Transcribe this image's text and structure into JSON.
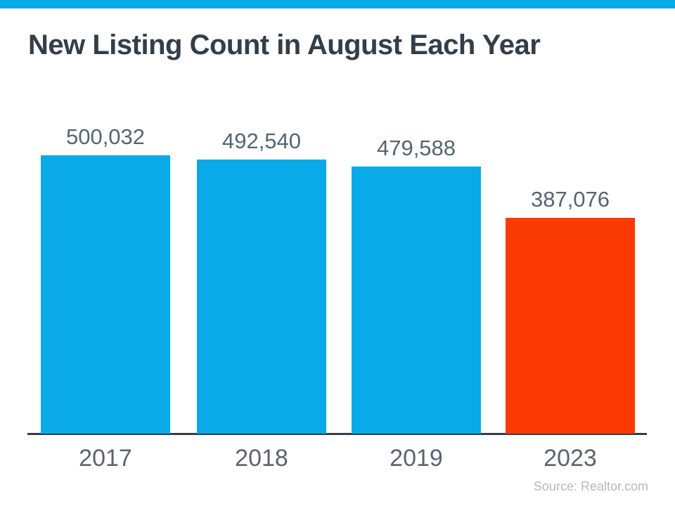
{
  "page": {
    "background": "#FFFFFF",
    "top_bar_color": "#0AA9E8"
  },
  "chart_data": {
    "type": "bar",
    "title": "New Listing Count in August Each Year",
    "title_color": "#333E48",
    "categories": [
      "2017",
      "2018",
      "2019",
      "2023"
    ],
    "values": [
      500032,
      492540,
      479588,
      387076
    ],
    "value_labels": [
      "500,032",
      "492,540",
      "479,588",
      "387,076"
    ],
    "bar_colors": [
      "#0AA9E8",
      "#0AA9E8",
      "#0AA9E8",
      "#FB3A05"
    ],
    "xlabel": "",
    "ylabel": "",
    "ylim": [
      0,
      500032
    ],
    "grid": false,
    "legend": false,
    "y_axis_shown": false,
    "axis_color": "#333E48",
    "value_label_color": "#546570",
    "tick_label_color": "#5A6470"
  },
  "footer": {
    "source": "Source: Realtor.com",
    "color": "#B2BAC3"
  }
}
